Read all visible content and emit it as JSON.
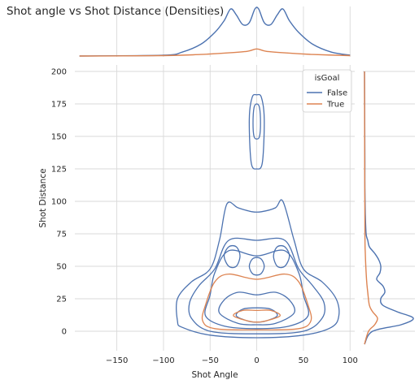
{
  "chart_data": {
    "type": "kde-joint",
    "title": "Shot angle vs Shot Distance (Densities)",
    "xlabel": "Shot Angle",
    "ylabel": "Shot Distance",
    "xlim": [
      -195,
      105
    ],
    "ylim": [
      -15,
      205
    ],
    "xticks": [
      -150,
      -100,
      -50,
      0,
      50,
      100
    ],
    "yticks": [
      0,
      25,
      50,
      75,
      100,
      125,
      150,
      175,
      200
    ],
    "grid": true,
    "legend": {
      "title": "isGoal",
      "placement": "top-right"
    },
    "series": [
      {
        "name": "False",
        "color": "#4c72b0",
        "marginal_x": [
          [
            -190,
            0
          ],
          [
            -100,
            0.002
          ],
          [
            -80,
            0.01
          ],
          [
            -60,
            0.03
          ],
          [
            -45,
            0.06
          ],
          [
            -35,
            0.09
          ],
          [
            -28,
            0.12
          ],
          [
            -22,
            0.105
          ],
          [
            -15,
            0.08
          ],
          [
            -8,
            0.085
          ],
          [
            -2,
            0.12
          ],
          [
            2,
            0.12
          ],
          [
            8,
            0.085
          ],
          [
            15,
            0.08
          ],
          [
            22,
            0.105
          ],
          [
            28,
            0.12
          ],
          [
            35,
            0.09
          ],
          [
            45,
            0.06
          ],
          [
            60,
            0.03
          ],
          [
            80,
            0.01
          ],
          [
            100,
            0.002
          ]
        ],
        "marginal_y": [
          [
            -10,
            0
          ],
          [
            0,
            0.02
          ],
          [
            5,
            0.09
          ],
          [
            10,
            0.12
          ],
          [
            15,
            0.08
          ],
          [
            20,
            0.045
          ],
          [
            25,
            0.04
          ],
          [
            30,
            0.05
          ],
          [
            35,
            0.045
          ],
          [
            40,
            0.03
          ],
          [
            45,
            0.038
          ],
          [
            50,
            0.04
          ],
          [
            55,
            0.035
          ],
          [
            60,
            0.025
          ],
          [
            65,
            0.012
          ],
          [
            70,
            0.008
          ],
          [
            75,
            0.004
          ],
          [
            90,
            0.002
          ],
          [
            110,
            0.001
          ],
          [
            130,
            0.001
          ],
          [
            160,
            0.0005
          ],
          [
            200,
            0
          ]
        ],
        "contours": [
          [
            [
              -85,
              8
            ],
            [
              -80,
              3
            ],
            [
              -50,
              -3
            ],
            [
              0,
              -5
            ],
            [
              50,
              -3
            ],
            [
              80,
              3
            ],
            [
              88,
              12
            ],
            [
              85,
              25
            ],
            [
              70,
              38
            ],
            [
              50,
              48
            ],
            [
              40,
              70
            ],
            [
              28,
              100
            ],
            [
              20,
              95
            ],
            [
              5,
              92
            ],
            [
              -5,
              92
            ],
            [
              -20,
              95
            ],
            [
              -32,
              98
            ],
            [
              -40,
              70
            ],
            [
              -50,
              48
            ],
            [
              -70,
              38
            ],
            [
              -85,
              25
            ]
          ],
          [
            [
              -70,
              10
            ],
            [
              -50,
              0
            ],
            [
              0,
              -2
            ],
            [
              50,
              0
            ],
            [
              70,
              10
            ],
            [
              72,
              22
            ],
            [
              60,
              35
            ],
            [
              45,
              48
            ],
            [
              30,
              70
            ],
            [
              0,
              70
            ],
            [
              -30,
              70
            ],
            [
              -45,
              48
            ],
            [
              -62,
              35
            ],
            [
              -72,
              22
            ]
          ],
          [
            [
              -55,
              12
            ],
            [
              -35,
              4
            ],
            [
              0,
              2
            ],
            [
              35,
              4
            ],
            [
              55,
              12
            ],
            [
              50,
              28
            ],
            [
              45,
              45
            ],
            [
              30,
              62
            ],
            [
              0,
              58
            ],
            [
              -30,
              62
            ],
            [
              -45,
              45
            ],
            [
              -50,
              28
            ]
          ],
          [
            [
              -40,
              14
            ],
            [
              -20,
              6
            ],
            [
              0,
              5
            ],
            [
              20,
              6
            ],
            [
              40,
              14
            ],
            [
              35,
              24
            ],
            [
              20,
              30
            ],
            [
              0,
              28
            ],
            [
              -20,
              30
            ],
            [
              -35,
              24
            ]
          ],
          [
            [
              -22,
              12
            ],
            [
              -10,
              8
            ],
            [
              0,
              7
            ],
            [
              10,
              8
            ],
            [
              22,
              12
            ],
            [
              15,
              17
            ],
            [
              0,
              18
            ],
            [
              -15,
              17
            ]
          ],
          [
            [
              -8,
              163
            ],
            [
              -6,
              130
            ],
            [
              0,
              125
            ],
            [
              6,
              130
            ],
            [
              8,
              163
            ],
            [
              5,
              180
            ],
            [
              0,
              182
            ],
            [
              -5,
              180
            ]
          ],
          [
            [
              -4,
              160
            ],
            [
              -3,
              150
            ],
            [
              0,
              148
            ],
            [
              3,
              150
            ],
            [
              4,
              160
            ],
            [
              3,
              172
            ],
            [
              0,
              175
            ],
            [
              -3,
              172
            ]
          ],
          [
            [
              -35,
              58
            ],
            [
              -30,
              50
            ],
            [
              -22,
              50
            ],
            [
              -18,
              58
            ],
            [
              -22,
              65
            ],
            [
              -30,
              65
            ]
          ],
          [
            [
              35,
              58
            ],
            [
              30,
              50
            ],
            [
              22,
              50
            ],
            [
              18,
              58
            ],
            [
              22,
              65
            ],
            [
              30,
              65
            ]
          ],
          [
            [
              -8,
              50
            ],
            [
              -4,
              44
            ],
            [
              4,
              44
            ],
            [
              8,
              50
            ],
            [
              4,
              56
            ],
            [
              -4,
              56
            ]
          ]
        ]
      },
      {
        "name": "True",
        "color": "#dd8452",
        "marginal_x": [
          [
            -190,
            0
          ],
          [
            -100,
            0.001
          ],
          [
            -60,
            0.004
          ],
          [
            -30,
            0.008
          ],
          [
            -10,
            0.012
          ],
          [
            0,
            0.018
          ],
          [
            10,
            0.012
          ],
          [
            30,
            0.008
          ],
          [
            60,
            0.004
          ],
          [
            100,
            0.001
          ]
        ],
        "marginal_y": [
          [
            -10,
            0
          ],
          [
            0,
            0.01
          ],
          [
            5,
            0.025
          ],
          [
            10,
            0.032
          ],
          [
            15,
            0.02
          ],
          [
            20,
            0.012
          ],
          [
            30,
            0.008
          ],
          [
            40,
            0.005
          ],
          [
            60,
            0.002
          ],
          [
            80,
            0.001
          ],
          [
            200,
            0
          ]
        ],
        "contours": [
          [
            [
              -58,
              8
            ],
            [
              -45,
              2
            ],
            [
              0,
              1
            ],
            [
              45,
              2
            ],
            [
              58,
              8
            ],
            [
              55,
              20
            ],
            [
              45,
              38
            ],
            [
              30,
              44
            ],
            [
              0,
              40
            ],
            [
              -30,
              44
            ],
            [
              -45,
              38
            ],
            [
              -55,
              20
            ]
          ],
          [
            [
              -25,
              12
            ],
            [
              -10,
              8
            ],
            [
              0,
              7
            ],
            [
              10,
              8
            ],
            [
              25,
              12
            ],
            [
              15,
              16
            ],
            [
              0,
              16
            ],
            [
              -15,
              16
            ]
          ]
        ]
      }
    ]
  }
}
